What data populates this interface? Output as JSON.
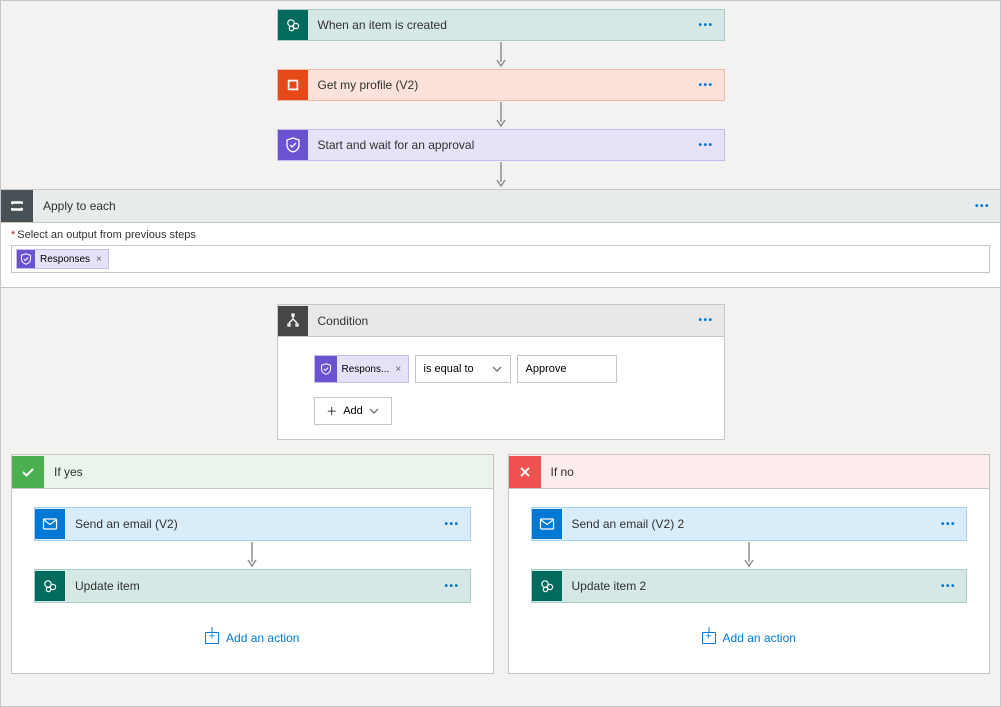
{
  "colors": {
    "sharepoint_bg": "#036b5e",
    "sharepoint_card_bg": "#d6e8e6",
    "sharepoint_card_border": "#a6cdc8",
    "office_bg": "#e64a19",
    "office_card_bg": "#fbe2db",
    "office_card_border": "#f0b9aa",
    "approval_bg": "#6b52d1",
    "approval_card_bg": "#e6e2f7",
    "approval_card_border": "#c4bdec",
    "outlook_bg": "#0078d4",
    "outlook_card_bg": "#d9ecfa",
    "outlook_card_border": "#a5d0ef",
    "ate_icon_bg": "#475156",
    "cond_icon_bg": "#484644",
    "arrow": "#8a8886"
  },
  "top_steps": [
    {
      "id": "trigger",
      "title": "When an item is created",
      "icon": "sharepoint",
      "bg": "#d6e8e6",
      "bd": "#a6cdc8",
      "ibg": "#036b5e"
    },
    {
      "id": "profile",
      "title": "Get my profile (V2)",
      "icon": "office",
      "bg": "#fbe2db",
      "bd": "#f0b9aa",
      "ibg": "#e64a19"
    },
    {
      "id": "approval",
      "title": "Start and wait for an approval",
      "icon": "approval",
      "bg": "#e6e2f7",
      "bd": "#c4bdec",
      "ibg": "#6b52d1"
    }
  ],
  "apply_to_each": {
    "title": "Apply to each",
    "field_label": "Select an output from previous steps",
    "token_label": "Responses"
  },
  "condition": {
    "title": "Condition",
    "left_token": "Respons...",
    "operator": "is equal to",
    "value": "Approve",
    "add_label": "Add"
  },
  "branches": {
    "yes": {
      "title": "If yes",
      "steps": [
        {
          "id": "email-yes",
          "title": "Send an email (V2)",
          "icon": "outlook",
          "bg": "#d9ecfa",
          "bd": "#a5d0ef",
          "ibg": "#0078d4"
        },
        {
          "id": "update-yes",
          "title": "Update item",
          "icon": "sharepoint",
          "bg": "#d6e8e6",
          "bd": "#a6cdc8",
          "ibg": "#036b5e"
        }
      ],
      "add_action": "Add an action"
    },
    "no": {
      "title": "If no",
      "steps": [
        {
          "id": "email-no",
          "title": "Send an email (V2) 2",
          "icon": "outlook",
          "bg": "#d9ecfa",
          "bd": "#a5d0ef",
          "ibg": "#0078d4"
        },
        {
          "id": "update-no",
          "title": "Update item 2",
          "icon": "sharepoint",
          "bg": "#d6e8e6",
          "bd": "#a6cdc8",
          "ibg": "#036b5e"
        }
      ],
      "add_action": "Add an action"
    }
  }
}
